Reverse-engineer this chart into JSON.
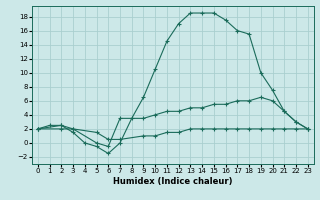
{
  "xlabel": "Humidex (Indice chaleur)",
  "background_color": "#cce8e8",
  "grid_color": "#aacfcf",
  "line_color": "#1a6b5a",
  "xlim": [
    -0.5,
    23.5
  ],
  "ylim": [
    -3,
    19.5
  ],
  "xticks": [
    0,
    1,
    2,
    3,
    4,
    5,
    6,
    7,
    8,
    9,
    10,
    11,
    12,
    13,
    14,
    15,
    16,
    17,
    18,
    19,
    20,
    21,
    22,
    23
  ],
  "yticks": [
    -2,
    0,
    2,
    4,
    6,
    8,
    10,
    12,
    14,
    16,
    18
  ],
  "line1_x": [
    0,
    1,
    2,
    3,
    4,
    5,
    6,
    7,
    8,
    9,
    10,
    11,
    12,
    13,
    14,
    15,
    16,
    17,
    18,
    19,
    20,
    21,
    22,
    23
  ],
  "line1_y": [
    2,
    2.5,
    2.5,
    1.5,
    0,
    -0.5,
    -1.5,
    0,
    3.5,
    6.5,
    10.5,
    14.5,
    17,
    18.5,
    18.5,
    18.5,
    17.5,
    16,
    15.5,
    10,
    7.5,
    4.5,
    3,
    2
  ],
  "line2_x": [
    0,
    2,
    3,
    5,
    6,
    7,
    9,
    10,
    11,
    12,
    13,
    14,
    15,
    16,
    17,
    18,
    19,
    20,
    21,
    22,
    23
  ],
  "line2_y": [
    2,
    2.5,
    2,
    0,
    -0.5,
    3.5,
    3.5,
    4,
    4.5,
    4.5,
    5,
    5,
    5.5,
    5.5,
    6,
    6,
    6.5,
    6,
    4.5,
    3,
    2
  ],
  "line3_x": [
    0,
    2,
    3,
    5,
    6,
    7,
    9,
    10,
    11,
    12,
    13,
    14,
    15,
    16,
    17,
    18,
    19,
    20,
    21,
    22,
    23
  ],
  "line3_y": [
    2,
    2,
    2,
    1.5,
    0.5,
    0.5,
    1,
    1,
    1.5,
    1.5,
    2,
    2,
    2,
    2,
    2,
    2,
    2,
    2,
    2,
    2,
    2
  ]
}
